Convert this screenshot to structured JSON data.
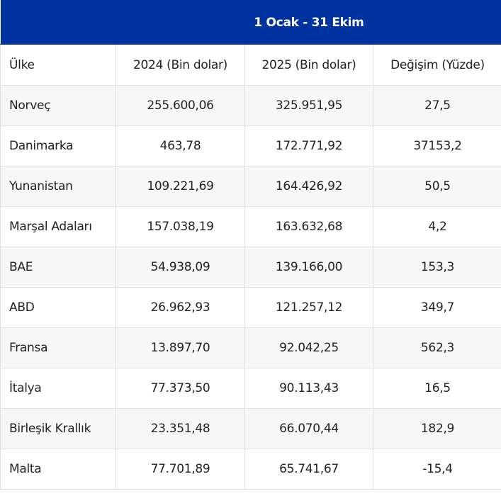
{
  "table": {
    "period_label": "1 Ocak - 31 Ekim",
    "header_color": "#0033a0",
    "columns": [
      "Ülke",
      "2024 (Bin dolar)",
      "2025 (Bin dolar)",
      "Değişim (Yüzde)"
    ],
    "rows": [
      {
        "country": "Norveç",
        "y2024": "255.600,06",
        "y2025": "325.951,95",
        "change": "27,5"
      },
      {
        "country": "Danimarka",
        "y2024": "463,78",
        "y2025": "172.771,92",
        "change": "37153,2"
      },
      {
        "country": "Yunanistan",
        "y2024": "109.221,69",
        "y2025": "164.426,92",
        "change": "50,5"
      },
      {
        "country": "Marşal Adaları",
        "y2024": "157.038,19",
        "y2025": "163.632,68",
        "change": "4,2"
      },
      {
        "country": "BAE",
        "y2024": "54.938,09",
        "y2025": "139.166,00",
        "change": "153,3"
      },
      {
        "country": "ABD",
        "y2024": "26.962,93",
        "y2025": "121.257,12",
        "change": "349,7"
      },
      {
        "country": "Fransa",
        "y2024": "13.897,70",
        "y2025": "92.042,25",
        "change": "562,3"
      },
      {
        "country": "İtalya",
        "y2024": "77.373,50",
        "y2025": "90.113,43",
        "change": "16,5"
      },
      {
        "country": "Birleşik Krallık",
        "y2024": "23.351,48",
        "y2025": "66.070,44",
        "change": "182,9"
      },
      {
        "country": "Malta",
        "y2024": "77.701,89",
        "y2025": "65.741,67",
        "change": "-15,4"
      }
    ]
  }
}
